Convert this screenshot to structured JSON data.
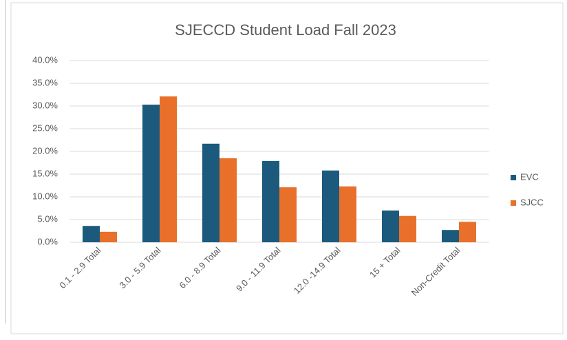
{
  "chart_data": {
    "type": "bar",
    "title": "SJECCD Student Load Fall 2023",
    "categories": [
      "0.1 - 2.9 Total",
      "3.0 - 5.9 Total",
      "6.0 - 8.9 Total",
      "9.0 - 11.9 Total",
      "12.0 -14.9 Total",
      "15 + Total",
      "Non-Credit Total"
    ],
    "series": [
      {
        "name": "EVC",
        "color": "#1c5a7d",
        "values": [
          3.6,
          30.3,
          21.7,
          17.9,
          15.8,
          7.0,
          2.7
        ]
      },
      {
        "name": "SJCC",
        "color": "#e8702a",
        "values": [
          2.3,
          32.1,
          18.5,
          12.1,
          12.3,
          5.8,
          4.5
        ]
      }
    ],
    "ylim": [
      0,
      40
    ],
    "yticks": [
      {
        "value": 0,
        "label": "0.0%"
      },
      {
        "value": 5,
        "label": "5.0%"
      },
      {
        "value": 10,
        "label": "10.0%"
      },
      {
        "value": 15,
        "label": "15.0%"
      },
      {
        "value": 20,
        "label": "20.0%"
      },
      {
        "value": 25,
        "label": "25.0%"
      },
      {
        "value": 30,
        "label": "30.0%"
      },
      {
        "value": 35,
        "label": "35.0%"
      },
      {
        "value": 40,
        "label": "40.0%"
      }
    ],
    "grid": true,
    "legend": "right"
  }
}
